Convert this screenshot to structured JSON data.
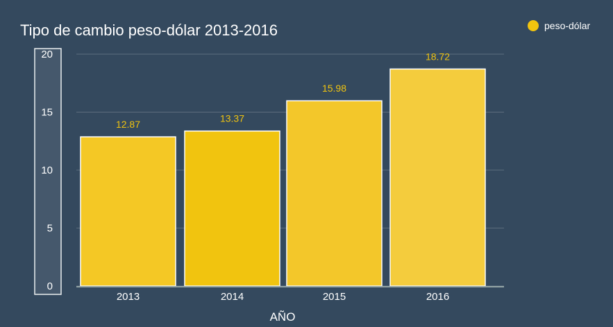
{
  "chart_data": {
    "type": "bar",
    "title": "Tipo de cambio peso-dólar 2013-2016",
    "xlabel": "AÑO",
    "ylabel": "",
    "categories": [
      "2013",
      "2014",
      "2015",
      "2016"
    ],
    "series": [
      {
        "name": "peso-dólar",
        "values": [
          12.87,
          13.37,
          15.98,
          18.72
        ],
        "color": "#f1c40f"
      }
    ],
    "bar_colors": [
      "#f4c825",
      "#f1c40f",
      "#f3c72a",
      "#f4cc3d"
    ],
    "data_labels": [
      "12.87",
      "13.37",
      "15.98",
      "18.72"
    ],
    "ylim": [
      0,
      20
    ],
    "yticks": [
      0,
      5,
      10,
      15,
      20
    ],
    "grid": true,
    "legend_position": "top-right"
  },
  "colors": {
    "background": "#34495e",
    "gridline": "#5d6d7e",
    "text": "#ffffff",
    "label": "#f1c40f"
  }
}
